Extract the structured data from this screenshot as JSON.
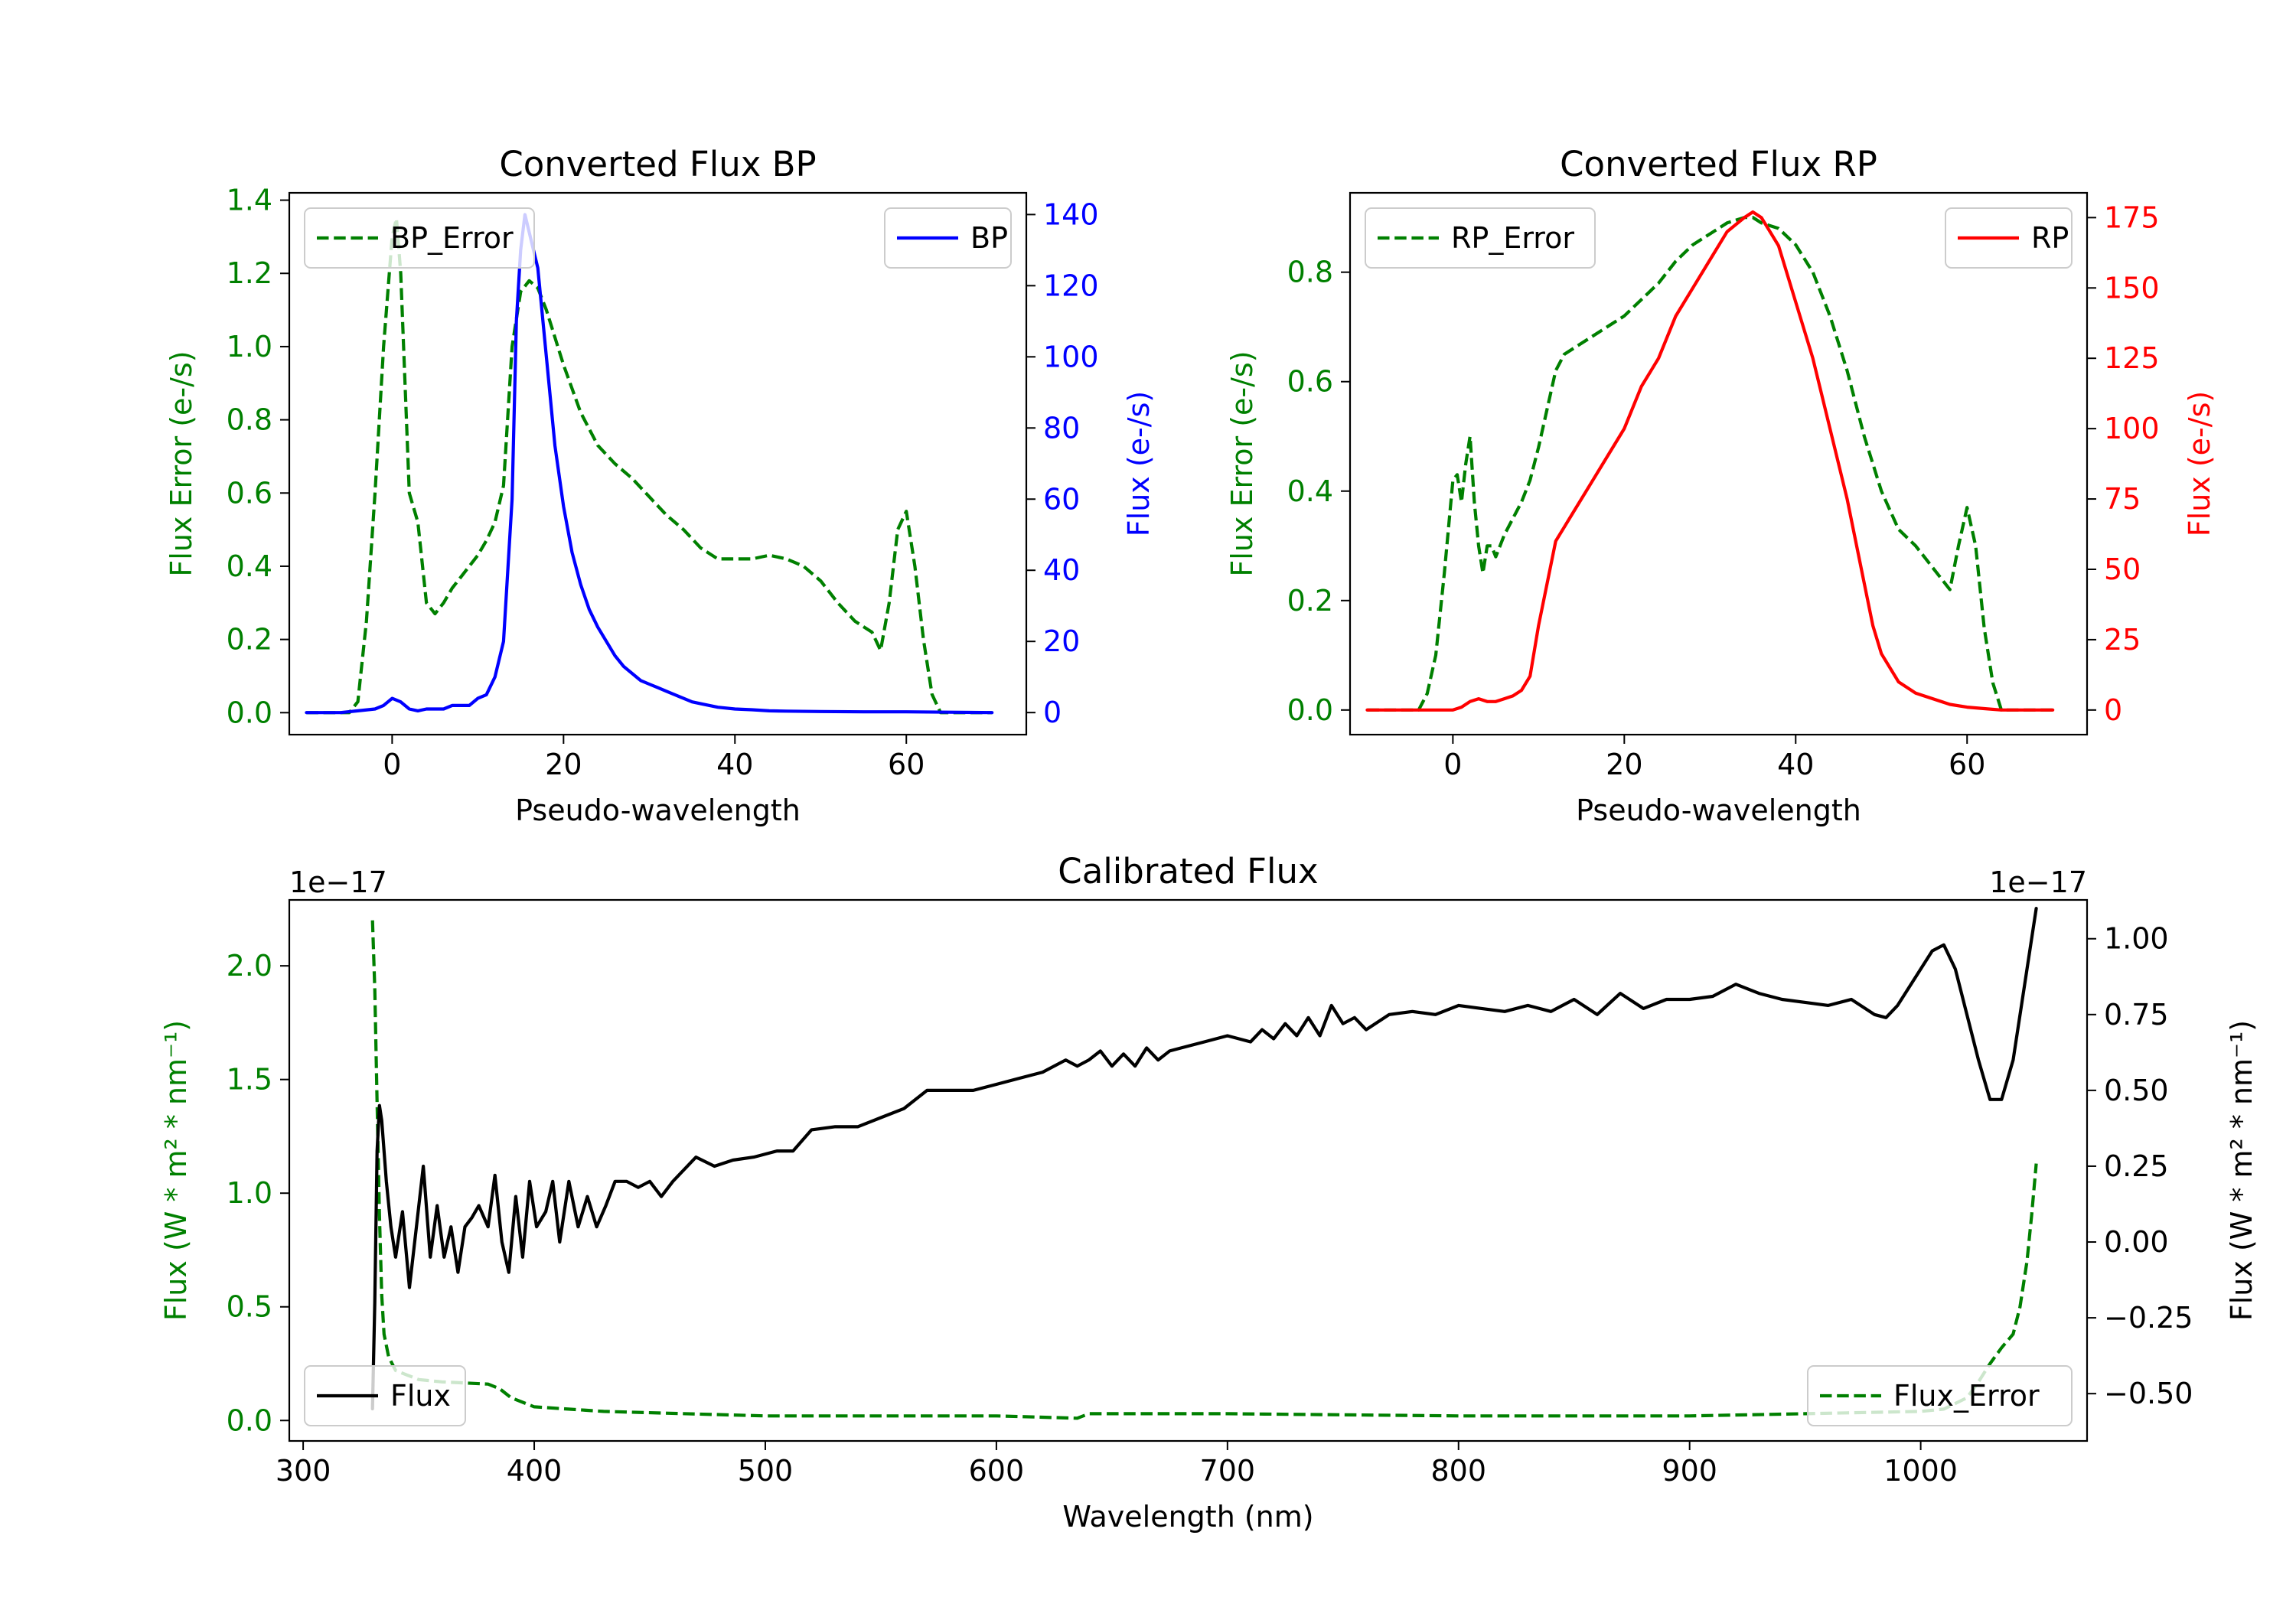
{
  "colors": {
    "green": "#008000",
    "blue": "#0000ff",
    "red": "#ff0000",
    "black": "#000000"
  },
  "chart_data": [
    {
      "type": "line",
      "id": "bp",
      "title": "Converted Flux BP",
      "xlabel": "Pseudo-wavelength",
      "ylabel_left": "Flux Error (e-/s)",
      "ylabel_right": "Flux (e-/s)",
      "xlim": [
        -12,
        74
      ],
      "ylim_left": [
        -0.06,
        1.42
      ],
      "ylim_right": [
        -6.2,
        146.1
      ],
      "xticks": [
        0,
        20,
        40,
        60
      ],
      "yticks_left": [
        0.0,
        0.2,
        0.4,
        0.6,
        0.8,
        1.0,
        1.2,
        1.4
      ],
      "yticks_right": [
        0,
        20,
        40,
        60,
        80,
        100,
        120,
        140
      ],
      "right_color": "#0000ff",
      "series": [
        {
          "name": "BP_Error",
          "axis": "left",
          "style": "dashed",
          "color": "#008000",
          "x": [
            -10,
            -5,
            -4,
            -3,
            -2,
            -1,
            0,
            0.5,
            1,
            1.5,
            2,
            3,
            4,
            5,
            6,
            7,
            8,
            9,
            10,
            11,
            12,
            13,
            14,
            15,
            16,
            17,
            18,
            20,
            22,
            24,
            26,
            28,
            30,
            32,
            34,
            36,
            38,
            40,
            42,
            44,
            46,
            48,
            50,
            52,
            54,
            56,
            57,
            58,
            59,
            60,
            61,
            62,
            63,
            64,
            66,
            68,
            70
          ],
          "y": [
            0.0,
            0.0,
            0.03,
            0.25,
            0.6,
            1.0,
            1.3,
            1.35,
            1.2,
            0.9,
            0.6,
            0.52,
            0.3,
            0.27,
            0.3,
            0.34,
            0.37,
            0.4,
            0.43,
            0.47,
            0.52,
            0.62,
            1.0,
            1.15,
            1.18,
            1.16,
            1.1,
            0.95,
            0.82,
            0.73,
            0.68,
            0.64,
            0.59,
            0.54,
            0.5,
            0.45,
            0.42,
            0.42,
            0.42,
            0.43,
            0.42,
            0.4,
            0.36,
            0.3,
            0.25,
            0.22,
            0.17,
            0.3,
            0.5,
            0.55,
            0.4,
            0.2,
            0.05,
            0.0,
            0.0,
            0.0,
            0.0
          ]
        },
        {
          "name": "BP",
          "axis": "right",
          "style": "solid",
          "color": "#0000ff",
          "x": [
            -10,
            -6,
            -4,
            -2,
            -1,
            0,
            1,
            2,
            3,
            4,
            5,
            6,
            7,
            8,
            9,
            10,
            11,
            12,
            13,
            14,
            14.5,
            15,
            15.5,
            16,
            17,
            18,
            19,
            20,
            21,
            22,
            23,
            24,
            25,
            26,
            27,
            28,
            29,
            30,
            31,
            32,
            33,
            34,
            35,
            36,
            38,
            40,
            42,
            44,
            46,
            50,
            55,
            60,
            65,
            70
          ],
          "y": [
            0,
            0,
            0.5,
            1,
            2,
            4,
            3,
            1,
            0.5,
            1,
            1,
            1,
            2,
            2,
            2,
            4,
            5,
            10,
            20,
            60,
            110,
            130,
            140,
            135,
            125,
            100,
            75,
            58,
            45,
            36,
            29,
            24,
            20,
            16,
            13,
            11,
            9,
            8,
            7,
            6,
            5,
            4,
            3,
            2.5,
            1.5,
            1,
            0.8,
            0.5,
            0.4,
            0.3,
            0.2,
            0.2,
            0.1,
            0
          ]
        }
      ],
      "legend": [
        {
          "label": "BP_Error",
          "location": "upper left"
        },
        {
          "label": "BP",
          "location": "upper right"
        }
      ]
    },
    {
      "type": "line",
      "id": "rp",
      "title": "Converted Flux RP",
      "xlabel": "Pseudo-wavelength",
      "ylabel_left": "Flux Error (e-/s)",
      "ylabel_right": "Flux (e-/s)",
      "xlim": [
        -12,
        74
      ],
      "ylim_left": [
        -0.045,
        0.945
      ],
      "ylim_right": [
        -8.75,
        183.8
      ],
      "xticks": [
        0,
        20,
        40,
        60
      ],
      "yticks_left": [
        0.0,
        0.2,
        0.4,
        0.6,
        0.8
      ],
      "yticks_right": [
        0,
        25,
        50,
        75,
        100,
        125,
        150,
        175
      ],
      "right_color": "#ff0000",
      "series": [
        {
          "name": "RP_Error",
          "axis": "left",
          "style": "dashed",
          "color": "#008000",
          "x": [
            -10,
            -4,
            -3,
            -2,
            -1,
            0,
            0.5,
            1,
            1.5,
            2,
            2.5,
            3,
            3.5,
            4,
            4.5,
            5,
            6,
            7,
            8,
            9,
            10,
            11,
            12,
            13,
            14,
            16,
            18,
            20,
            22,
            24,
            26,
            28,
            30,
            32,
            34,
            35,
            36,
            38,
            40,
            42,
            44,
            46,
            48,
            50,
            52,
            54,
            55,
            56,
            57,
            58,
            59,
            60,
            61,
            62,
            63,
            64,
            66,
            70
          ],
          "y": [
            0.0,
            0.0,
            0.03,
            0.1,
            0.25,
            0.42,
            0.43,
            0.38,
            0.45,
            0.5,
            0.38,
            0.3,
            0.25,
            0.3,
            0.3,
            0.28,
            0.32,
            0.35,
            0.38,
            0.42,
            0.48,
            0.55,
            0.62,
            0.65,
            0.66,
            0.68,
            0.7,
            0.72,
            0.75,
            0.78,
            0.82,
            0.85,
            0.87,
            0.89,
            0.9,
            0.9,
            0.89,
            0.88,
            0.85,
            0.8,
            0.72,
            0.62,
            0.5,
            0.4,
            0.33,
            0.3,
            0.28,
            0.26,
            0.24,
            0.22,
            0.3,
            0.37,
            0.3,
            0.15,
            0.05,
            0.0,
            0.0,
            0.0
          ]
        },
        {
          "name": "RP",
          "axis": "right",
          "style": "solid",
          "color": "#ff0000",
          "x": [
            -10,
            -2,
            0,
            1,
            2,
            3,
            4,
            5,
            6,
            7,
            8,
            9,
            10,
            11,
            12,
            13,
            14,
            16,
            18,
            20,
            22,
            24,
            26,
            28,
            30,
            32,
            34,
            35,
            36,
            37,
            38,
            40,
            42,
            44,
            46,
            48,
            49,
            50,
            52,
            54,
            56,
            58,
            60,
            62,
            64,
            66,
            70
          ],
          "y": [
            0,
            0,
            0,
            1,
            3,
            4,
            3,
            3,
            4,
            5,
            7,
            12,
            30,
            45,
            60,
            65,
            70,
            80,
            90,
            100,
            115,
            125,
            140,
            150,
            160,
            170,
            175,
            177,
            175,
            170,
            165,
            145,
            125,
            100,
            75,
            45,
            30,
            20,
            10,
            6,
            4,
            2,
            1,
            0.5,
            0,
            0,
            0
          ]
        }
      ],
      "legend": [
        {
          "label": "RP_Error",
          "location": "upper left"
        },
        {
          "label": "RP",
          "location": "upper right"
        }
      ]
    },
    {
      "type": "line",
      "id": "cal",
      "title": "Calibrated Flux",
      "xlabel": "Wavelength (nm)",
      "ylabel_left": "Flux (W * m² * nm⁻¹)",
      "ylabel_right": "Flux (W * m² * nm⁻¹)",
      "offset_left": "1e−17",
      "offset_right": "1e−17",
      "xlim": [
        294,
        1072
      ],
      "ylim_left": [
        -0.09,
        2.29
      ],
      "ylim_right": [
        -0.656,
        1.128
      ],
      "xticks": [
        300,
        400,
        500,
        600,
        700,
        800,
        900,
        1000
      ],
      "yticks_left": [
        0.0,
        0.5,
        1.0,
        1.5,
        2.0
      ],
      "yticks_left_labels": [
        "0.0",
        "0.5",
        "1.0",
        "1.5",
        "2.0"
      ],
      "yticks_right": [
        -0.5,
        -0.25,
        0.0,
        0.25,
        0.5,
        0.75,
        1.0
      ],
      "yticks_right_labels": [
        "−0.50",
        "−0.25",
        "0.00",
        "0.25",
        "0.50",
        "0.75",
        "1.00"
      ],
      "right_color": "#000000",
      "series": [
        {
          "name": "Flux_Error",
          "axis": "left",
          "style": "dashed",
          "color": "#008000",
          "x": [
            330,
            331,
            332,
            333,
            334,
            335,
            337,
            340,
            345,
            350,
            360,
            380,
            385,
            390,
            400,
            430,
            500,
            600,
            635,
            640,
            700,
            800,
            900,
            950,
            1000,
            1010,
            1020,
            1025,
            1030,
            1035,
            1040,
            1043,
            1046,
            1048,
            1050
          ],
          "y": [
            2.2,
            1.9,
            1.4,
            0.9,
            0.55,
            0.38,
            0.28,
            0.22,
            0.2,
            0.18,
            0.17,
            0.16,
            0.14,
            0.1,
            0.06,
            0.04,
            0.02,
            0.02,
            0.01,
            0.03,
            0.03,
            0.02,
            0.02,
            0.03,
            0.04,
            0.05,
            0.1,
            0.17,
            0.25,
            0.32,
            0.38,
            0.5,
            0.7,
            0.9,
            1.13
          ]
        },
        {
          "name": "Flux",
          "axis": "right",
          "style": "solid",
          "color": "#000000",
          "x": [
            330,
            331,
            332,
            333,
            334,
            336,
            338,
            340,
            343,
            346,
            349,
            352,
            355,
            358,
            361,
            364,
            367,
            370,
            373,
            376,
            380,
            383,
            386,
            389,
            392,
            395,
            398,
            401,
            405,
            408,
            411,
            415,
            419,
            423,
            427,
            431,
            435,
            440,
            445,
            450,
            455,
            460,
            470,
            478,
            486,
            495,
            505,
            512,
            520,
            530,
            540,
            550,
            560,
            570,
            580,
            590,
            600,
            610,
            620,
            630,
            635,
            640,
            645,
            650,
            655,
            660,
            665,
            670,
            675,
            680,
            690,
            700,
            710,
            715,
            720,
            725,
            730,
            735,
            740,
            745,
            750,
            755,
            760,
            770,
            780,
            790,
            800,
            810,
            820,
            830,
            840,
            850,
            860,
            870,
            880,
            890,
            900,
            910,
            920,
            930,
            940,
            950,
            960,
            970,
            980,
            985,
            990,
            1000,
            1005,
            1010,
            1015,
            1020,
            1025,
            1030,
            1035,
            1040,
            1045,
            1050
          ],
          "y": [
            -0.55,
            -0.2,
            0.3,
            0.45,
            0.4,
            0.2,
            0.05,
            -0.05,
            0.1,
            -0.15,
            0.05,
            0.25,
            -0.05,
            0.12,
            -0.05,
            0.05,
            -0.1,
            0.05,
            0.08,
            0.12,
            0.05,
            0.22,
            0.0,
            -0.1,
            0.15,
            -0.05,
            0.2,
            0.05,
            0.1,
            0.2,
            0.0,
            0.2,
            0.05,
            0.15,
            0.05,
            0.12,
            0.2,
            0.2,
            0.18,
            0.2,
            0.15,
            0.2,
            0.28,
            0.25,
            0.27,
            0.28,
            0.3,
            0.3,
            0.37,
            0.38,
            0.38,
            0.41,
            0.44,
            0.5,
            0.5,
            0.5,
            0.52,
            0.54,
            0.56,
            0.6,
            0.58,
            0.6,
            0.63,
            0.58,
            0.62,
            0.58,
            0.64,
            0.6,
            0.63,
            0.64,
            0.66,
            0.68,
            0.66,
            0.7,
            0.67,
            0.72,
            0.68,
            0.74,
            0.68,
            0.78,
            0.72,
            0.74,
            0.7,
            0.75,
            0.76,
            0.75,
            0.78,
            0.77,
            0.76,
            0.78,
            0.76,
            0.8,
            0.75,
            0.82,
            0.77,
            0.8,
            0.8,
            0.81,
            0.85,
            0.82,
            0.8,
            0.79,
            0.78,
            0.8,
            0.75,
            0.74,
            0.78,
            0.9,
            0.96,
            0.98,
            0.9,
            0.75,
            0.6,
            0.47,
            0.47,
            0.6,
            0.85,
            1.1
          ]
        }
      ],
      "legend": [
        {
          "label": "Flux",
          "location": "lower left"
        },
        {
          "label": "Flux_Error",
          "location": "lower right"
        }
      ]
    }
  ]
}
